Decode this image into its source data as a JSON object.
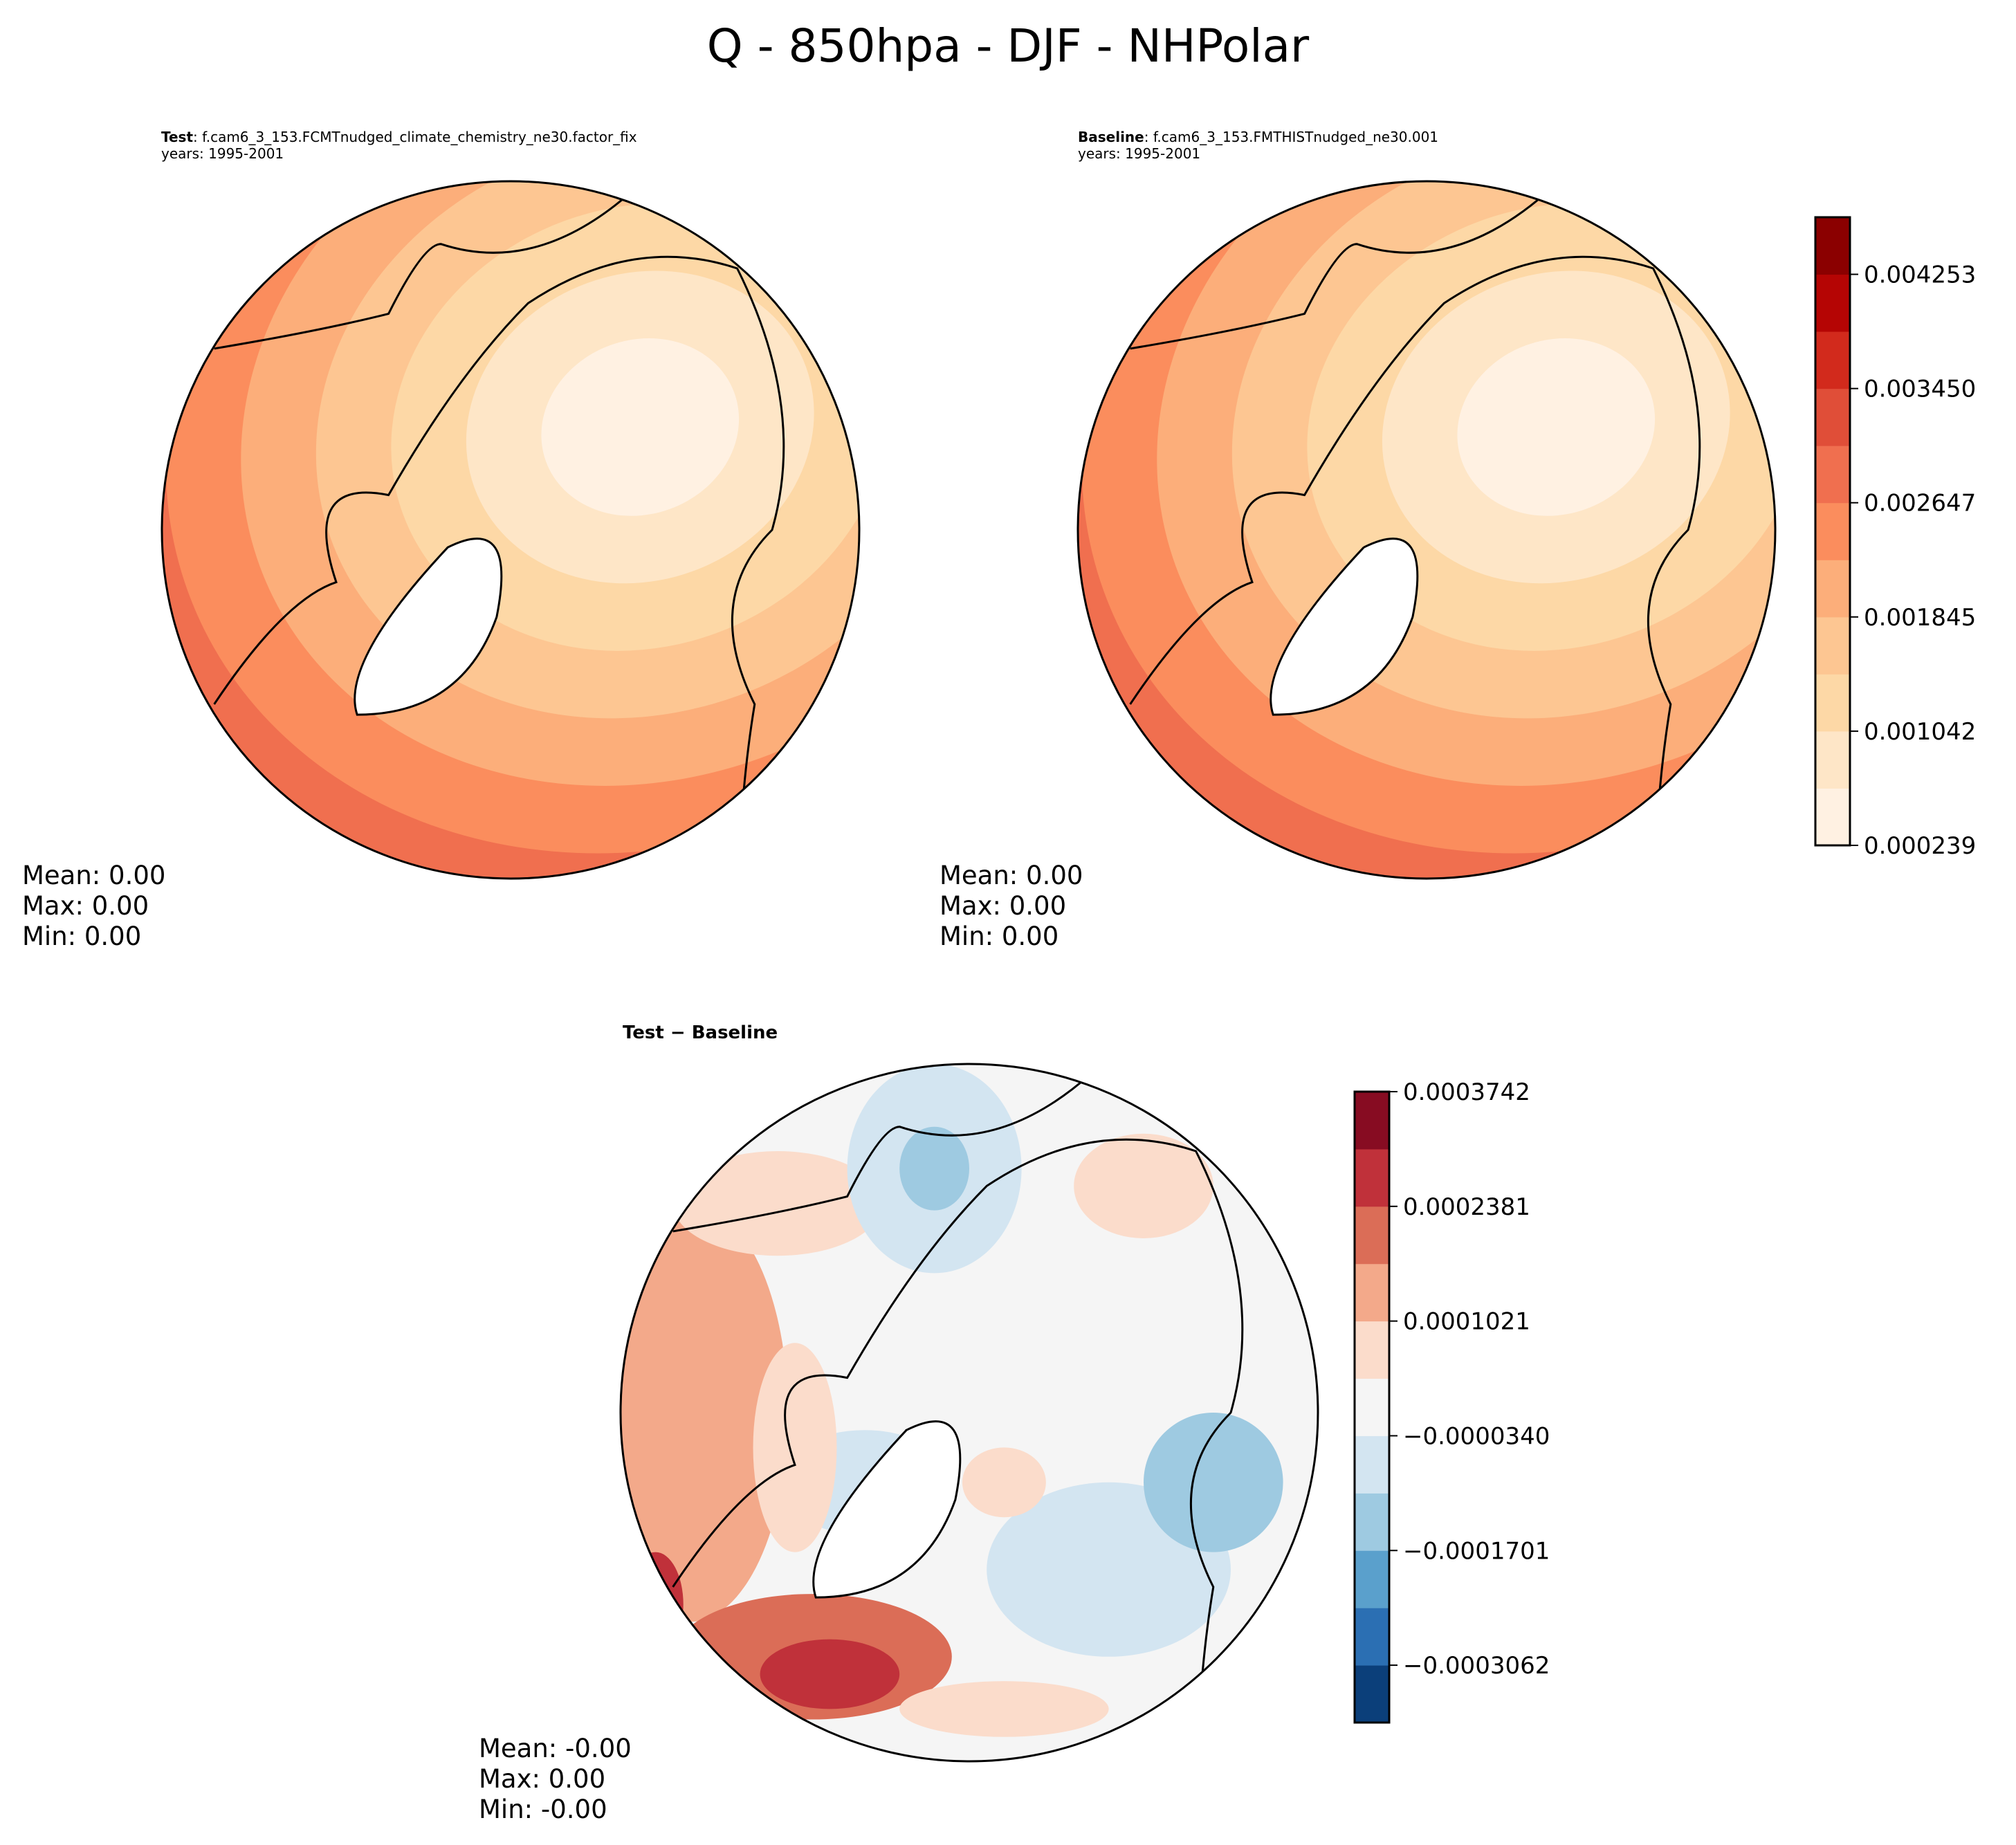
{
  "title": "Q - 850hpa - DJF - NHPolar",
  "panels": [
    {
      "label": "Test",
      "case": "f.cam6_3_153.FCMTnudged_climate_chemistry_ne30.factor_fix",
      "years": "years: 1995-2001",
      "stats": {
        "mean": "Mean:  0.00",
        "max": "Max:  0.00",
        "min": "Min:  0.00"
      }
    },
    {
      "label": "Baseline",
      "case": "f.cam6_3_153.FMTHISTnudged_ne30.001",
      "years": "years: 1995-2001",
      "stats": {
        "mean": "Mean:  0.00",
        "max": "Max:  0.00",
        "min": "Min:  0.00"
      }
    },
    {
      "label": "Test − Baseline",
      "stats": {
        "mean": "Mean: -0.00",
        "max": "Max:  0.00",
        "min": "Min: -0.00"
      }
    }
  ],
  "chart_data": [
    {
      "type": "heatmap",
      "projection": "north-polar-stereo",
      "title": "Test",
      "colorbar": {
        "ticks": [
          "0.000239",
          "0.001042",
          "0.001845",
          "0.002647",
          "0.003450",
          "0.004253"
        ],
        "levels": [
          0.000239,
          0.00064,
          0.001042,
          0.001443,
          0.001845,
          0.002246,
          0.002647,
          0.003049,
          0.00345,
          0.003852,
          0.004253,
          0.004654
        ],
        "colors": [
          "#fff1e2",
          "#fee6c7",
          "#fdd8a6",
          "#fdc692",
          "#fcae7a",
          "#fb8d5d",
          "#f06f4f",
          "#e04e38",
          "#d22a1c",
          "#b50504",
          "#8b0000"
        ]
      }
    },
    {
      "type": "heatmap",
      "projection": "north-polar-stereo",
      "title": "Baseline"
    },
    {
      "type": "heatmap",
      "projection": "north-polar-stereo",
      "title": "Test − Baseline",
      "colorbar": {
        "ticks": [
          "0.0003742",
          "0.0002381",
          "0.0001021",
          "−0.0000340",
          "−0.0001701",
          "−0.0003062"
        ],
        "colors": [
          "#0b3f7a",
          "#2b6fb3",
          "#5aa0cc",
          "#9ecae1",
          "#d3e5f1",
          "#f5f5f5",
          "#fbdccb",
          "#f3a98a",
          "#db6d57",
          "#c0313a",
          "#870c22"
        ]
      }
    }
  ]
}
